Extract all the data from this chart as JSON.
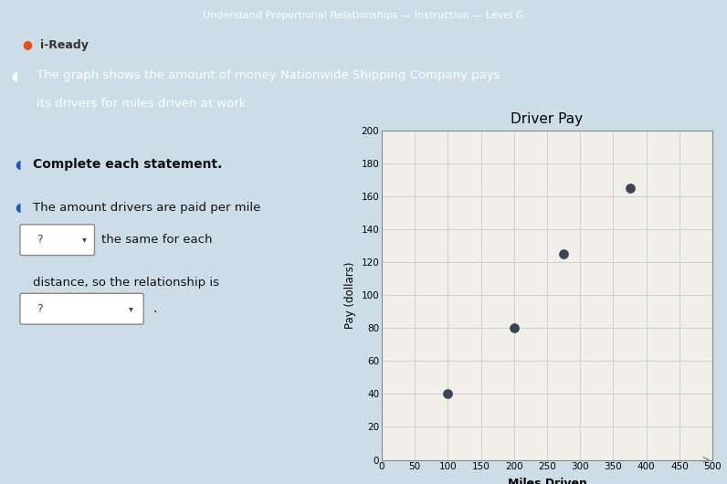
{
  "title": "Driver Pay",
  "xlabel": "Miles Driven",
  "ylabel": "Pay (dollars)",
  "points_x": [
    100,
    200,
    275,
    375
  ],
  "points_y": [
    40,
    80,
    125,
    165
  ],
  "xlim": [
    0,
    500
  ],
  "ylim": [
    0,
    200
  ],
  "xticks": [
    0,
    50,
    100,
    150,
    200,
    250,
    300,
    350,
    400,
    450,
    500
  ],
  "yticks": [
    0,
    20,
    40,
    60,
    80,
    100,
    120,
    140,
    160,
    180,
    200
  ],
  "dot_color": "#3d4457",
  "dot_size": 45,
  "grid_color": "#cccccc",
  "plot_bg_color": "#f0efe8",
  "fig_bg_color": "#ccdde8",
  "left_panel_bg": "#ccdde8",
  "header_bg": "#3a5080",
  "top_bar_bg": "#1a1a2e",
  "header_text": "Understand Proportional Relationships — Instruction — Level G",
  "brand_text": "● i-Ready",
  "instruction_line1": "◖ The graph shows the amount of money Nationwide Shipping Company pays",
  "instruction_line2": "    its drivers for miles driven at work.",
  "complete_text": "Complete each statement.",
  "statement_text": "The amount drivers are paid per mile",
  "dropdown1_text": "?",
  "same_text": "the same for each",
  "distance_text": "distance, so the relationship is",
  "dropdown2_text": "?"
}
